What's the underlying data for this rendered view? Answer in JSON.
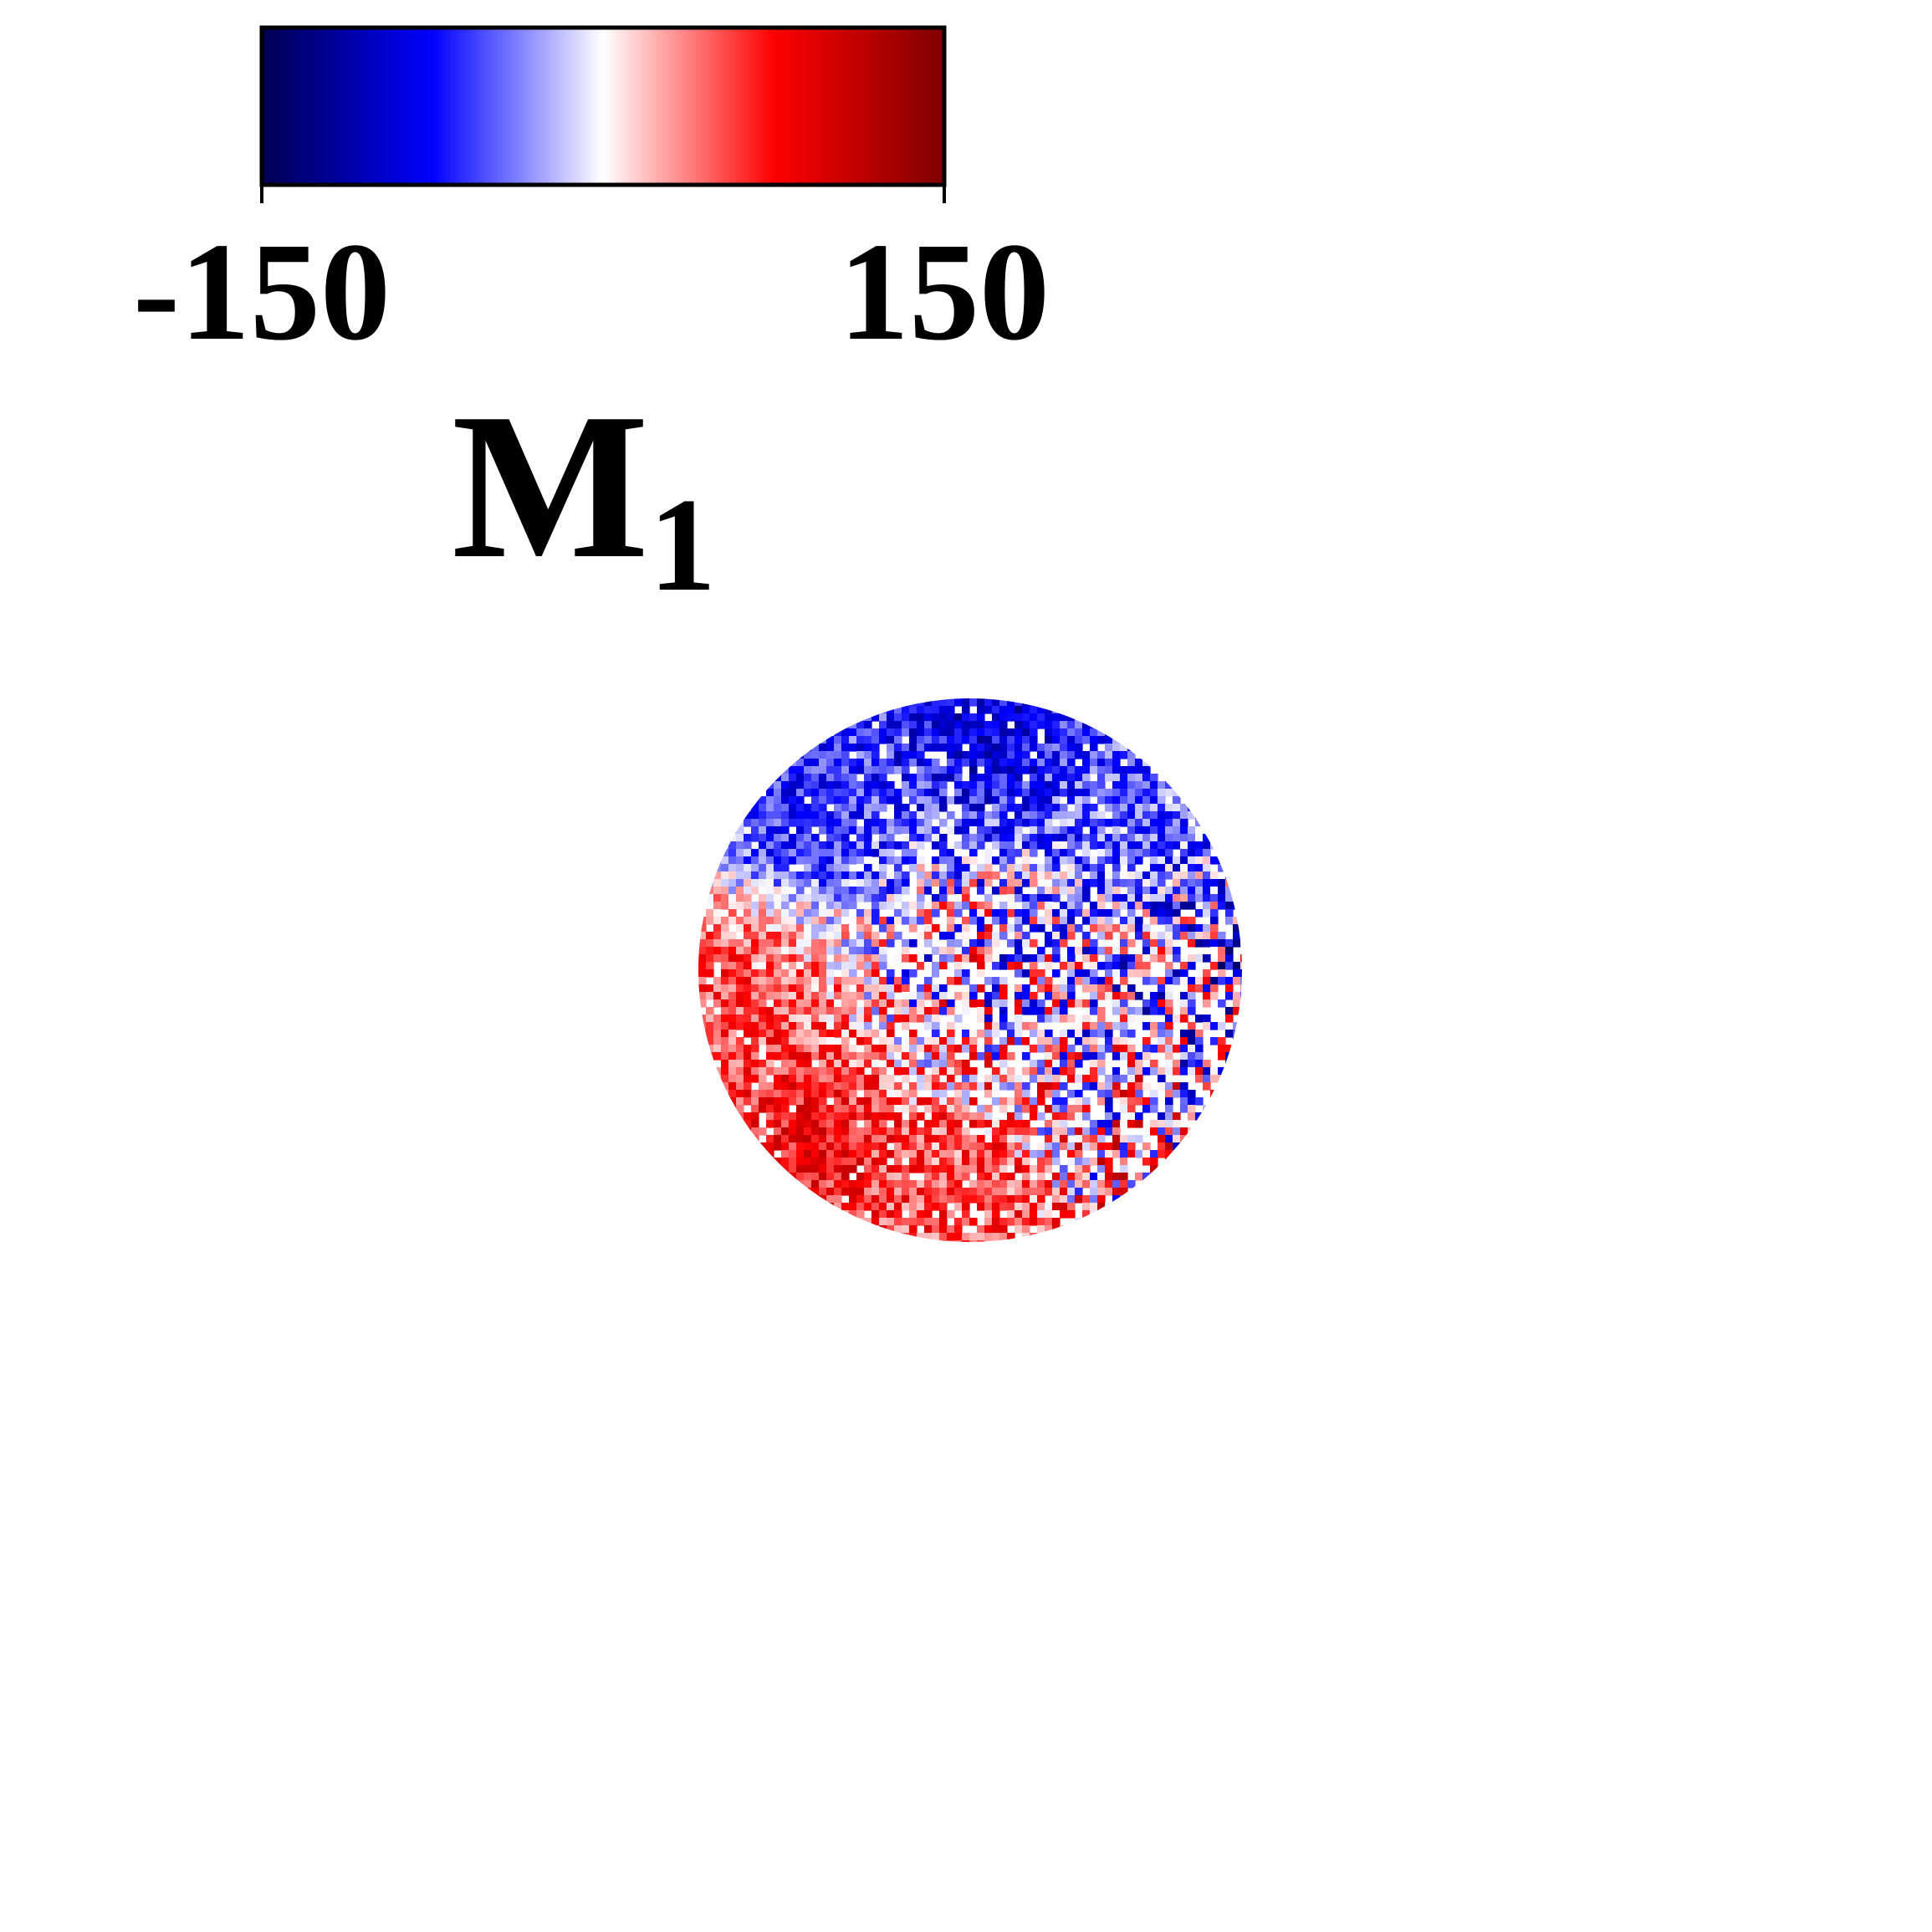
{
  "chart_data": {
    "type": "heatmap",
    "title": "",
    "colorbar": {
      "label": "M",
      "label_subscript": "1",
      "min": -150,
      "max": 150,
      "tick_labels": [
        "-150",
        "150"
      ],
      "orientation": "horizontal",
      "placement": "top-left",
      "colormap": "seismic",
      "colors": [
        "#000050",
        "#0000ff",
        "#ffffff",
        "#ff0000",
        "#800000"
      ]
    },
    "map": {
      "shape": "circular",
      "placement": "center",
      "background": "#ffffff",
      "value_range": [
        -150,
        150
      ],
      "regions": [
        {
          "area": "upper-left",
          "tendency": "negative",
          "approx_value": -70
        },
        {
          "area": "top",
          "tendency": "negative",
          "approx_value": -90
        },
        {
          "area": "upper-right",
          "tendency": "negative",
          "approx_value": -50
        },
        {
          "area": "right",
          "tendency": "mixed",
          "approx_value": -30
        },
        {
          "area": "center",
          "tendency": "mixed",
          "approx_value": 0
        },
        {
          "area": "left",
          "tendency": "positive",
          "approx_value": 60
        },
        {
          "area": "lower-left",
          "tendency": "positive",
          "approx_value": 80
        },
        {
          "area": "bottom",
          "tendency": "positive",
          "approx_value": 60
        },
        {
          "area": "lower-right",
          "tendency": "mixed",
          "approx_value": 10
        }
      ],
      "missing_values_color": "#ffffff"
    }
  }
}
